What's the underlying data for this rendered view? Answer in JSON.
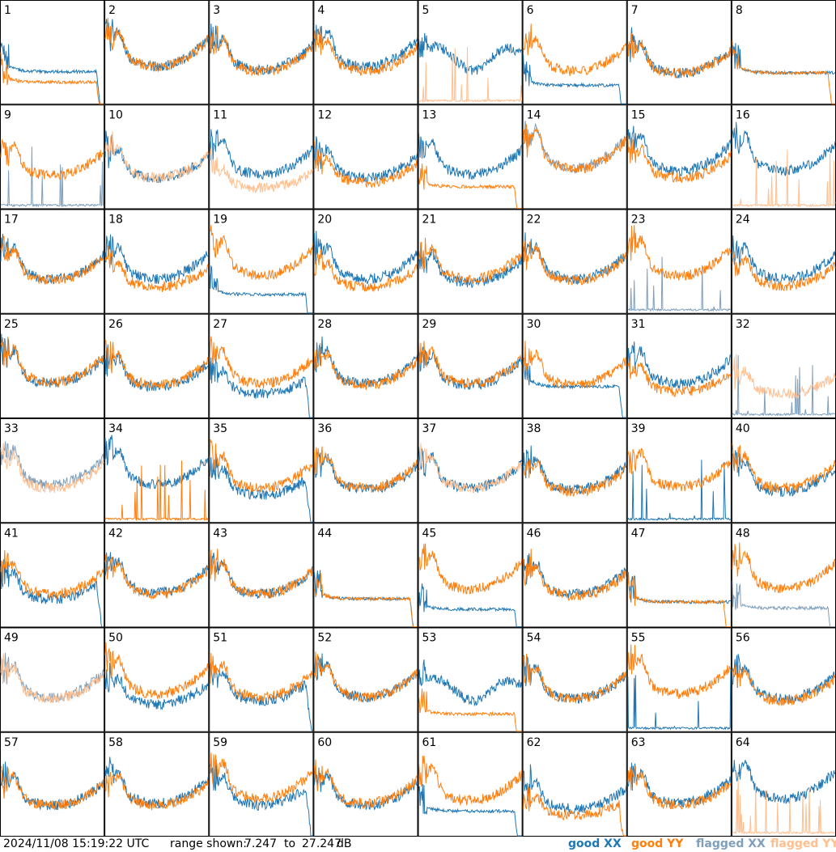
{
  "timestamp": "2024/11/08 15:19:22 UTC",
  "range": {
    "label": "range shown:",
    "min": "7.247",
    "to": "to",
    "max": "27.247",
    "unit": "dB"
  },
  "legend": [
    {
      "label": "good XX",
      "color": "#1f77b4"
    },
    {
      "label": "good YY",
      "color": "#ff7f0e"
    },
    {
      "label": "flagged XX",
      "color": "#7f9fbb"
    },
    {
      "label": "flagged YY",
      "color": "#ffbf8f"
    }
  ],
  "chart_data": {
    "type": "line",
    "title": "",
    "ylim": [
      7.247,
      27.247
    ],
    "yunit": "dB",
    "grid_layout": "8 columns x 8 rows",
    "panels": [
      {
        "id": "1",
        "xx": "good",
        "yy": "good",
        "xx_profile": "flat",
        "yy_profile": "flat",
        "xx_level": 0.52,
        "yy_level": 0.35,
        "dropoff": "both"
      },
      {
        "id": "2",
        "xx": "good",
        "yy": "good",
        "xx_profile": "u",
        "yy_profile": "u",
        "xx_level": 0.55,
        "yy_level": 0.55,
        "dropoff": "none"
      },
      {
        "id": "3",
        "xx": "good",
        "yy": "good",
        "xx_profile": "u",
        "yy_profile": "u",
        "xx_level": 0.5,
        "yy_level": 0.48,
        "dropoff": "none"
      },
      {
        "id": "4",
        "xx": "good",
        "yy": "good",
        "xx_profile": "u",
        "yy_profile": "u",
        "xx_level": 0.55,
        "yy_level": 0.48,
        "dropoff": "none"
      },
      {
        "id": "5",
        "xx": "good",
        "yy": "flagged",
        "xx_profile": "wavy",
        "yy_profile": "spikes",
        "xx_level": 0.6,
        "yy_level": 0.0,
        "dropoff": "none"
      },
      {
        "id": "6",
        "xx": "good",
        "yy": "good",
        "xx_profile": "flat",
        "yy_profile": "u",
        "xx_level": 0.3,
        "yy_level": 0.48,
        "dropoff": "xx"
      },
      {
        "id": "7",
        "xx": "good",
        "yy": "good",
        "xx_profile": "u",
        "yy_profile": "u",
        "xx_level": 0.45,
        "yy_level": 0.45,
        "dropoff": "none"
      },
      {
        "id": "8",
        "xx": "good",
        "yy": "good",
        "xx_profile": "flat",
        "yy_profile": "flat",
        "xx_level": 0.5,
        "yy_level": 0.5,
        "dropoff": "yy"
      },
      {
        "id": "9",
        "xx": "flagged",
        "yy": "good",
        "xx_profile": "spikes",
        "yy_profile": "u",
        "xx_level": 0.0,
        "yy_level": 0.48,
        "dropoff": "none"
      },
      {
        "id": "10",
        "xx": "good",
        "yy": "flagged",
        "xx_profile": "u",
        "yy_profile": "u",
        "xx_level": 0.45,
        "yy_level": 0.45,
        "dropoff": "none"
      },
      {
        "id": "11",
        "xx": "good",
        "yy": "flagged",
        "xx_profile": "u",
        "yy_profile": "u",
        "xx_level": 0.5,
        "yy_level": 0.3,
        "dropoff": "none"
      },
      {
        "id": "12",
        "xx": "good",
        "yy": "good",
        "xx_profile": "u",
        "yy_profile": "u",
        "xx_level": 0.45,
        "yy_level": 0.38,
        "dropoff": "none"
      },
      {
        "id": "13",
        "xx": "good",
        "yy": "good",
        "xx_profile": "u",
        "yy_profile": "flat",
        "xx_level": 0.5,
        "yy_level": 0.35,
        "dropoff": "yy"
      },
      {
        "id": "14",
        "xx": "flagged",
        "yy": "good",
        "xx_profile": "u",
        "yy_profile": "u",
        "xx_level": 0.6,
        "yy_level": 0.58,
        "dropoff": "none"
      },
      {
        "id": "15",
        "xx": "good",
        "yy": "good",
        "xx_profile": "u",
        "yy_profile": "u",
        "xx_level": 0.55,
        "yy_level": 0.45,
        "dropoff": "none"
      },
      {
        "id": "16",
        "xx": "good",
        "yy": "flagged",
        "xx_profile": "u",
        "yy_profile": "spikes",
        "xx_level": 0.55,
        "yy_level": 0.0,
        "dropoff": "none"
      },
      {
        "id": "17",
        "xx": "good",
        "yy": "good",
        "xx_profile": "u",
        "yy_profile": "u",
        "xx_level": 0.5,
        "yy_level": 0.48,
        "dropoff": "none"
      },
      {
        "id": "18",
        "xx": "good",
        "yy": "good",
        "xx_profile": "u",
        "yy_profile": "u",
        "xx_level": 0.5,
        "yy_level": 0.38,
        "dropoff": "none"
      },
      {
        "id": "19",
        "xx": "good",
        "yy": "good",
        "xx_profile": "flat",
        "yy_profile": "u",
        "xx_level": 0.3,
        "yy_level": 0.55,
        "dropoff": "xx"
      },
      {
        "id": "20",
        "xx": "good",
        "yy": "good",
        "xx_profile": "u",
        "yy_profile": "u",
        "xx_level": 0.5,
        "yy_level": 0.38,
        "dropoff": "none"
      },
      {
        "id": "21",
        "xx": "good",
        "yy": "good",
        "xx_profile": "u",
        "yy_profile": "u",
        "xx_level": 0.45,
        "yy_level": 0.5,
        "dropoff": "none"
      },
      {
        "id": "22",
        "xx": "good",
        "yy": "good",
        "xx_profile": "u",
        "yy_profile": "u",
        "xx_level": 0.5,
        "yy_level": 0.48,
        "dropoff": "none"
      },
      {
        "id": "23",
        "xx": "flagged",
        "yy": "good",
        "xx_profile": "spikes",
        "yy_profile": "u",
        "xx_level": 0.0,
        "yy_level": 0.55,
        "dropoff": "none"
      },
      {
        "id": "24",
        "xx": "good",
        "yy": "good",
        "xx_profile": "u",
        "yy_profile": "u",
        "xx_level": 0.5,
        "yy_level": 0.4,
        "dropoff": "none"
      },
      {
        "id": "25",
        "xx": "good",
        "yy": "good",
        "xx_profile": "u",
        "yy_profile": "u",
        "xx_level": 0.5,
        "yy_level": 0.52,
        "dropoff": "none"
      },
      {
        "id": "26",
        "xx": "good",
        "yy": "good",
        "xx_profile": "u",
        "yy_profile": "u",
        "xx_level": 0.45,
        "yy_level": 0.48,
        "dropoff": "none"
      },
      {
        "id": "27",
        "xx": "good",
        "yy": "good",
        "xx_profile": "u",
        "yy_profile": "u",
        "xx_level": 0.35,
        "yy_level": 0.5,
        "dropoff": "xx"
      },
      {
        "id": "28",
        "xx": "good",
        "yy": "good",
        "xx_profile": "u",
        "yy_profile": "u",
        "xx_level": 0.5,
        "yy_level": 0.48,
        "dropoff": "none"
      },
      {
        "id": "29",
        "xx": "good",
        "yy": "good",
        "xx_profile": "u",
        "yy_profile": "u",
        "xx_level": 0.48,
        "yy_level": 0.5,
        "dropoff": "none"
      },
      {
        "id": "30",
        "xx": "good",
        "yy": "good",
        "xx_profile": "flat",
        "yy_profile": "u",
        "xx_level": 0.5,
        "yy_level": 0.48,
        "dropoff": "xx"
      },
      {
        "id": "31",
        "xx": "good",
        "yy": "good",
        "xx_profile": "u",
        "yy_profile": "u",
        "xx_level": 0.5,
        "yy_level": 0.38,
        "dropoff": "none"
      },
      {
        "id": "32",
        "xx": "flagged",
        "yy": "flagged",
        "xx_profile": "spikes",
        "yy_profile": "u",
        "xx_level": 0.0,
        "yy_level": 0.35,
        "dropoff": "none"
      },
      {
        "id": "33",
        "xx": "flagged",
        "yy": "flagged",
        "xx_profile": "u",
        "yy_profile": "u",
        "xx_level": 0.55,
        "yy_level": 0.5,
        "dropoff": "none"
      },
      {
        "id": "34",
        "xx": "good",
        "yy": "good",
        "xx_profile": "u",
        "yy_profile": "spikes",
        "xx_level": 0.55,
        "yy_level": 0.0,
        "dropoff": "none"
      },
      {
        "id": "35",
        "xx": "good",
        "yy": "good",
        "xx_profile": "u",
        "yy_profile": "u",
        "xx_level": 0.4,
        "yy_level": 0.5,
        "dropoff": "xx"
      },
      {
        "id": "36",
        "xx": "good",
        "yy": "good",
        "xx_profile": "u",
        "yy_profile": "u",
        "xx_level": 0.48,
        "yy_level": 0.5,
        "dropoff": "none"
      },
      {
        "id": "37",
        "xx": "good",
        "yy": "flagged",
        "xx_profile": "u",
        "yy_profile": "u",
        "xx_level": 0.5,
        "yy_level": 0.5,
        "dropoff": "none"
      },
      {
        "id": "38",
        "xx": "good",
        "yy": "good",
        "xx_profile": "u",
        "yy_profile": "u",
        "xx_level": 0.48,
        "yy_level": 0.45,
        "dropoff": "none"
      },
      {
        "id": "39",
        "xx": "good",
        "yy": "good",
        "xx_profile": "spikes",
        "yy_profile": "u",
        "xx_level": 0.0,
        "yy_level": 0.52,
        "dropoff": "none"
      },
      {
        "id": "40",
        "xx": "good",
        "yy": "good",
        "xx_profile": "u",
        "yy_profile": "u",
        "xx_level": 0.45,
        "yy_level": 0.5,
        "dropoff": "none"
      },
      {
        "id": "41",
        "xx": "good",
        "yy": "good",
        "xx_profile": "u",
        "yy_profile": "u",
        "xx_level": 0.4,
        "yy_level": 0.48,
        "dropoff": "xx"
      },
      {
        "id": "42",
        "xx": "good",
        "yy": "good",
        "xx_profile": "u",
        "yy_profile": "u",
        "xx_level": 0.5,
        "yy_level": 0.48,
        "dropoff": "none"
      },
      {
        "id": "43",
        "xx": "good",
        "yy": "good",
        "xx_profile": "u",
        "yy_profile": "u",
        "xx_level": 0.48,
        "yy_level": 0.48,
        "dropoff": "none"
      },
      {
        "id": "44",
        "xx": "good",
        "yy": "good",
        "xx_profile": "flat",
        "yy_profile": "flat",
        "xx_level": 0.45,
        "yy_level": 0.45,
        "dropoff": "both"
      },
      {
        "id": "45",
        "xx": "good",
        "yy": "good",
        "xx_profile": "flat",
        "yy_profile": "u",
        "xx_level": 0.28,
        "yy_level": 0.55,
        "dropoff": "xx"
      },
      {
        "id": "46",
        "xx": "good",
        "yy": "good",
        "xx_profile": "u",
        "yy_profile": "u",
        "xx_level": 0.48,
        "yy_level": 0.45,
        "dropoff": "none"
      },
      {
        "id": "47",
        "xx": "good",
        "yy": "good",
        "xx_profile": "flat",
        "yy_profile": "flat",
        "xx_level": 0.4,
        "yy_level": 0.4,
        "dropoff": "yy"
      },
      {
        "id": "48",
        "xx": "flagged",
        "yy": "good",
        "xx_profile": "flat",
        "yy_profile": "u",
        "xx_level": 0.3,
        "yy_level": 0.55,
        "dropoff": "xx"
      },
      {
        "id": "49",
        "xx": "flagged",
        "yy": "flagged",
        "xx_profile": "u",
        "yy_profile": "u",
        "xx_level": 0.5,
        "yy_level": 0.48,
        "dropoff": "none"
      },
      {
        "id": "50",
        "xx": "good",
        "yy": "good",
        "xx_profile": "u",
        "yy_profile": "u",
        "xx_level": 0.4,
        "yy_level": 0.55,
        "dropoff": "none"
      },
      {
        "id": "51",
        "xx": "good",
        "yy": "good",
        "xx_profile": "u",
        "yy_profile": "u",
        "xx_level": 0.45,
        "yy_level": 0.5,
        "dropoff": "xx"
      },
      {
        "id": "52",
        "xx": "good",
        "yy": "good",
        "xx_profile": "u",
        "yy_profile": "u",
        "xx_level": 0.5,
        "yy_level": 0.5,
        "dropoff": "none"
      },
      {
        "id": "53",
        "xx": "good",
        "yy": "good",
        "xx_profile": "wavy",
        "yy_profile": "flat",
        "xx_level": 0.55,
        "yy_level": 0.28,
        "dropoff": "yy"
      },
      {
        "id": "54",
        "xx": "good",
        "yy": "good",
        "xx_profile": "u",
        "yy_profile": "u",
        "xx_level": 0.48,
        "yy_level": 0.48,
        "dropoff": "none"
      },
      {
        "id": "55",
        "xx": "good",
        "yy": "good",
        "xx_profile": "spikes",
        "yy_profile": "u",
        "xx_level": 0.0,
        "yy_level": 0.55,
        "dropoff": "none"
      },
      {
        "id": "56",
        "xx": "good",
        "yy": "good",
        "xx_profile": "u",
        "yy_profile": "u",
        "xx_level": 0.48,
        "yy_level": 0.45,
        "dropoff": "none"
      },
      {
        "id": "57",
        "xx": "good",
        "yy": "good",
        "xx_profile": "u",
        "yy_profile": "u",
        "xx_level": 0.45,
        "yy_level": 0.45,
        "dropoff": "none"
      },
      {
        "id": "58",
        "xx": "good",
        "yy": "good",
        "xx_profile": "u",
        "yy_profile": "u",
        "xx_level": 0.48,
        "yy_level": 0.45,
        "dropoff": "none"
      },
      {
        "id": "59",
        "xx": "good",
        "yy": "good",
        "xx_profile": "u",
        "yy_profile": "u",
        "xx_level": 0.45,
        "yy_level": 0.55,
        "dropoff": "xx"
      },
      {
        "id": "60",
        "xx": "good",
        "yy": "good",
        "xx_profile": "u",
        "yy_profile": "u",
        "xx_level": 0.45,
        "yy_level": 0.48,
        "dropoff": "none"
      },
      {
        "id": "61",
        "xx": "good",
        "yy": "good",
        "xx_profile": "flat",
        "yy_profile": "u",
        "xx_level": 0.4,
        "yy_level": 0.52,
        "dropoff": "xx"
      },
      {
        "id": "62",
        "xx": "good",
        "yy": "good",
        "xx_profile": "u",
        "yy_profile": "u",
        "xx_level": 0.4,
        "yy_level": 0.3,
        "dropoff": "yy"
      },
      {
        "id": "63",
        "xx": "good",
        "yy": "good",
        "xx_profile": "u",
        "yy_profile": "u",
        "xx_level": 0.48,
        "yy_level": 0.45,
        "dropoff": "none"
      },
      {
        "id": "64",
        "xx": "good",
        "yy": "flagged",
        "xx_profile": "u",
        "yy_profile": "spikes",
        "xx_level": 0.55,
        "yy_level": 0.0,
        "dropoff": "none"
      }
    ]
  }
}
